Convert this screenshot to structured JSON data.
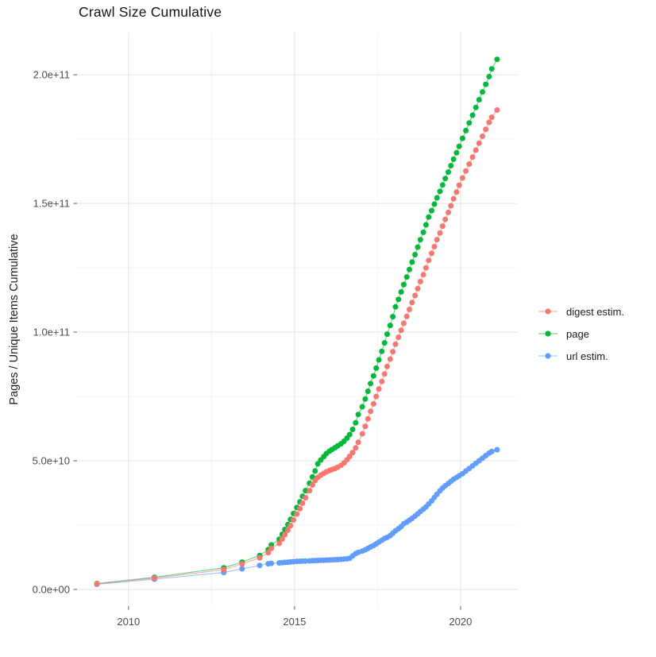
{
  "title": "Crawl Size Cumulative",
  "y_axis_title": "Pages / Unique Items Cumulative",
  "legend": {
    "items": [
      {
        "label": "digest estim.",
        "color": "#F8766D"
      },
      {
        "label": "page",
        "color": "#00BA38"
      },
      {
        "label": "url estim.",
        "color": "#619CFF"
      }
    ]
  },
  "chart_data": {
    "type": "line",
    "title": "Crawl Size Cumulative",
    "xlabel": "",
    "ylabel": "Pages / Unique Items Cumulative",
    "unit": "values in billions (1e9) of pages / unique items",
    "grid": true,
    "legend_position": "right",
    "xlim": [
      2008.45,
      2021.7
    ],
    "ylim_billions": [
      -6.5,
      216.4
    ],
    "x_ticks": [
      {
        "label": "2010",
        "x": 2010
      },
      {
        "label": "2015",
        "x": 2015
      },
      {
        "label": "2020",
        "x": 2020
      }
    ],
    "x_minor": [
      2012.5,
      2017.5
    ],
    "y_ticks": [
      {
        "label": "0.0e+00",
        "y": 0
      },
      {
        "label": "5.0e+10",
        "y": 50
      },
      {
        "label": "1.0e+11",
        "y": 100
      },
      {
        "label": "1.5e+11",
        "y": 150
      },
      {
        "label": "2.0e+11",
        "y": 200
      }
    ],
    "y_minor": [
      25,
      75,
      125,
      175
    ],
    "x_years": [
      2009.05,
      2010.78,
      2012.87,
      2013.42,
      2013.95,
      2014.21,
      2014.3,
      2014.54,
      2014.63,
      2014.71,
      2014.8,
      2014.88,
      2014.97,
      2015.07,
      2015.16,
      2015.24,
      2015.33,
      2015.45,
      2015.54,
      2015.62,
      2015.7,
      2015.79,
      2015.88,
      2015.96,
      2016.05,
      2016.13,
      2016.22,
      2016.3,
      2016.4,
      2016.49,
      2016.58,
      2016.66,
      2016.75,
      2016.84,
      2016.92,
      2017.04,
      2017.13,
      2017.21,
      2017.29,
      2017.38,
      2017.46,
      2017.54,
      2017.63,
      2017.71,
      2017.79,
      2017.88,
      2017.96,
      2018.04,
      2018.13,
      2018.21,
      2018.29,
      2018.38,
      2018.46,
      2018.54,
      2018.63,
      2018.71,
      2018.79,
      2018.88,
      2018.96,
      2019.04,
      2019.13,
      2019.21,
      2019.29,
      2019.38,
      2019.46,
      2019.54,
      2019.63,
      2019.71,
      2019.79,
      2019.88,
      2019.96,
      2020.06,
      2020.16,
      2020.26,
      2020.36,
      2020.46,
      2020.56,
      2020.66,
      2020.76,
      2020.86,
      2020.94,
      2021.1
    ],
    "series": [
      {
        "name": "url estim.",
        "color": "#619CFF",
        "values": [
          2.0,
          4.0,
          6.6,
          8.0,
          9.3,
          10.0,
          10.15,
          10.3,
          10.4,
          10.5,
          10.6,
          10.7,
          10.8,
          10.9,
          10.95,
          11.0,
          11.05,
          11.1,
          11.15,
          11.2,
          11.25,
          11.3,
          11.35,
          11.4,
          11.45,
          11.5,
          11.55,
          11.6,
          11.7,
          11.8,
          11.9,
          12.1,
          13.0,
          13.9,
          14.4,
          14.9,
          15.4,
          15.9,
          16.5,
          17.1,
          17.7,
          18.4,
          19.1,
          19.8,
          20.2,
          20.9,
          21.8,
          22.8,
          23.6,
          24.4,
          25.5,
          26.2,
          26.9,
          27.6,
          28.5,
          29.4,
          30.3,
          31.2,
          32.1,
          33.2,
          34.4,
          35.7,
          37.0,
          38.3,
          39.4,
          40.3,
          41.2,
          42.0,
          42.8,
          43.5,
          44.2,
          45.0,
          46.0,
          47.0,
          48.0,
          49.0,
          50.0,
          51.0,
          52.0,
          53.0,
          53.6,
          54.3
        ]
      },
      {
        "name": "page",
        "color": "#00BA38",
        "values": [
          2.3,
          4.7,
          8.4,
          10.6,
          13.2,
          15.5,
          17.3,
          19.5,
          21.4,
          23.3,
          25.2,
          27.2,
          29.5,
          31.8,
          34.0,
          36.2,
          38.4,
          41.3,
          43.7,
          46.0,
          48.8,
          50.3,
          51.6,
          52.8,
          53.7,
          54.4,
          55.1,
          55.8,
          56.6,
          57.6,
          58.8,
          60.2,
          62.2,
          64.8,
          68.0,
          71.0,
          74.0,
          77.0,
          80.0,
          83.0,
          86.0,
          89.2,
          92.5,
          95.8,
          99.2,
          102.6,
          106.0,
          109.8,
          112.7,
          115.6,
          118.5,
          121.4,
          124.3,
          127.2,
          130.1,
          133.0,
          135.9,
          138.8,
          141.7,
          144.7,
          147.2,
          149.7,
          152.2,
          154.7,
          157.2,
          159.7,
          162.2,
          164.7,
          167.2,
          169.7,
          172.2,
          175.3,
          178.3,
          181.3,
          184.3,
          187.3,
          190.3,
          193.3,
          196.3,
          199.3,
          202.3,
          206.0
        ]
      },
      {
        "name": "digest estim.",
        "color": "#F8766D",
        "values": [
          2.2,
          4.4,
          7.7,
          9.9,
          12.3,
          14.3,
          15.9,
          17.9,
          19.6,
          21.3,
          23.0,
          24.8,
          27.0,
          29.3,
          31.4,
          33.5,
          35.6,
          38.4,
          40.6,
          42.3,
          43.5,
          44.4,
          45.1,
          45.7,
          46.2,
          46.6,
          47.0,
          47.5,
          48.2,
          49.2,
          50.4,
          51.7,
          53.2,
          55.0,
          57.2,
          60.5,
          63.4,
          66.3,
          69.2,
          72.1,
          75.0,
          77.9,
          80.8,
          83.7,
          86.6,
          89.5,
          92.4,
          95.3,
          98.0,
          100.7,
          103.4,
          106.1,
          108.8,
          111.5,
          114.2,
          116.9,
          119.6,
          122.3,
          125.0,
          127.9,
          130.6,
          133.2,
          135.9,
          138.5,
          141.2,
          143.8,
          146.5,
          149.1,
          151.8,
          154.4,
          157.1,
          159.9,
          162.6,
          165.3,
          168.0,
          170.7,
          173.4,
          176.1,
          178.8,
          181.5,
          183.5,
          186.3
        ]
      }
    ]
  }
}
